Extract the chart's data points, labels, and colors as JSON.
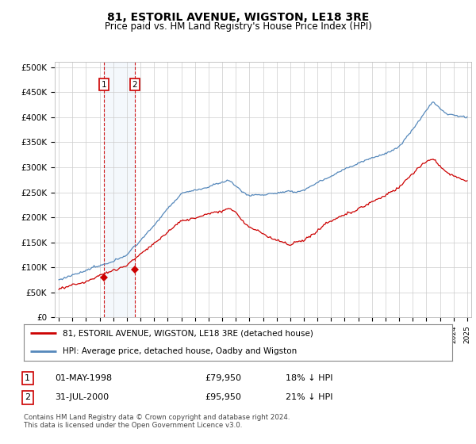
{
  "title": "81, ESTORIL AVENUE, WIGSTON, LE18 3RE",
  "subtitle": "Price paid vs. HM Land Registry's House Price Index (HPI)",
  "ylabel_ticks": [
    "£0",
    "£50K",
    "£100K",
    "£150K",
    "£200K",
    "£250K",
    "£300K",
    "£350K",
    "£400K",
    "£450K",
    "£500K"
  ],
  "ytick_values": [
    0,
    50000,
    100000,
    150000,
    200000,
    250000,
    300000,
    350000,
    400000,
    450000,
    500000
  ],
  "ylim": [
    0,
    510000
  ],
  "xlim_start": 1994.7,
  "xlim_end": 2025.3,
  "hpi_color": "#5588bb",
  "price_color": "#cc0000",
  "sale1_date": 1998.33,
  "sale1_price": 79950,
  "sale2_date": 2000.58,
  "sale2_price": 95950,
  "legend_line1": "81, ESTORIL AVENUE, WIGSTON, LE18 3RE (detached house)",
  "legend_line2": "HPI: Average price, detached house, Oadby and Wigston",
  "footer": "Contains HM Land Registry data © Crown copyright and database right 2024.\nThis data is licensed under the Open Government Licence v3.0.",
  "background_color": "#ffffff",
  "grid_color": "#cccccc",
  "title_fontsize": 10,
  "subtitle_fontsize": 8.5
}
